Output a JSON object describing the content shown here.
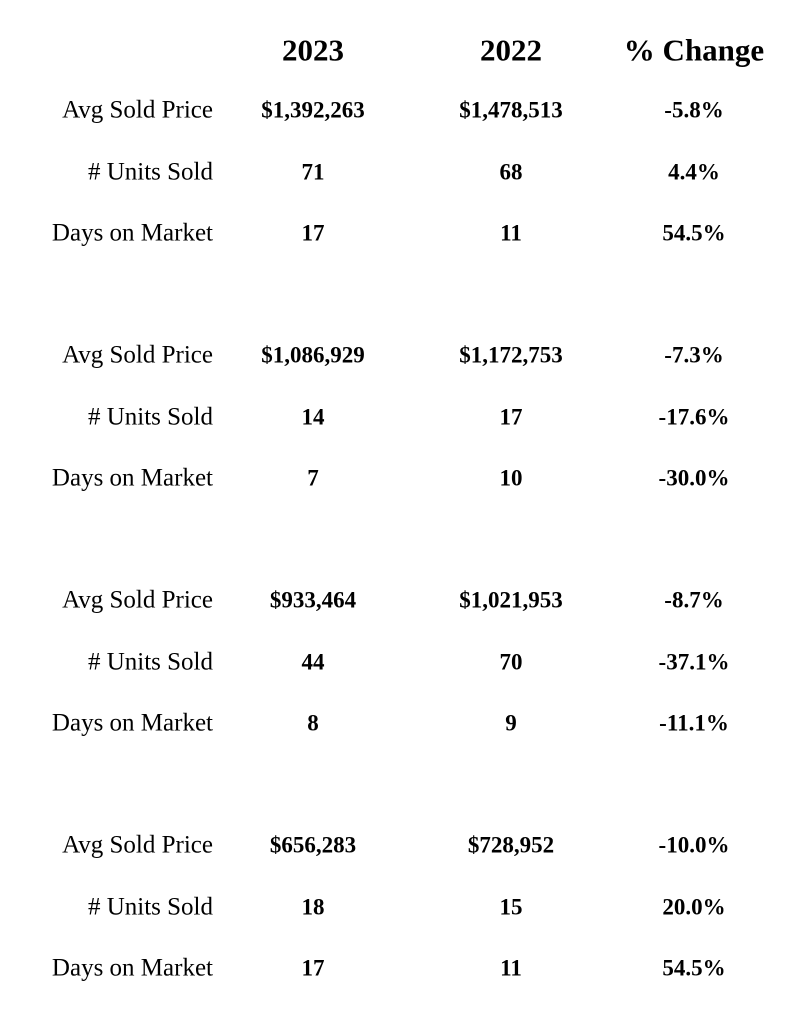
{
  "table": {
    "header": [
      "2023",
      "2022",
      "% Change"
    ],
    "groups": [
      [
        {
          "label": "Avg Sold Price",
          "values": [
            "$1,392,263",
            "$1,478,513",
            "-5.8%"
          ]
        },
        {
          "label": "# Units Sold",
          "values": [
            "71",
            "68",
            "4.4%"
          ]
        },
        {
          "label": "Days on Market",
          "values": [
            "17",
            "11",
            "54.5%"
          ]
        }
      ],
      [
        {
          "label": "Avg Sold Price",
          "values": [
            "$1,086,929",
            "$1,172,753",
            "-7.3%"
          ]
        },
        {
          "label": "# Units Sold",
          "values": [
            "14",
            "17",
            "-17.6%"
          ]
        },
        {
          "label": "Days on Market",
          "values": [
            "7",
            "10",
            "-30.0%"
          ]
        }
      ],
      [
        {
          "label": "Avg Sold Price",
          "values": [
            "$933,464",
            "$1,021,953",
            "-8.7%"
          ]
        },
        {
          "label": "# Units Sold",
          "values": [
            "44",
            "70",
            "-37.1%"
          ]
        },
        {
          "label": "Days on Market",
          "values": [
            "8",
            "9",
            "-11.1%"
          ]
        }
      ],
      [
        {
          "label": "Avg Sold Price",
          "values": [
            "$656,283",
            "$728,952",
            "-10.0%"
          ]
        },
        {
          "label": "# Units Sold",
          "values": [
            "18",
            "15",
            "20.0%"
          ]
        },
        {
          "label": "Days on Market",
          "values": [
            "17",
            "11",
            "54.5%"
          ]
        }
      ]
    ]
  }
}
